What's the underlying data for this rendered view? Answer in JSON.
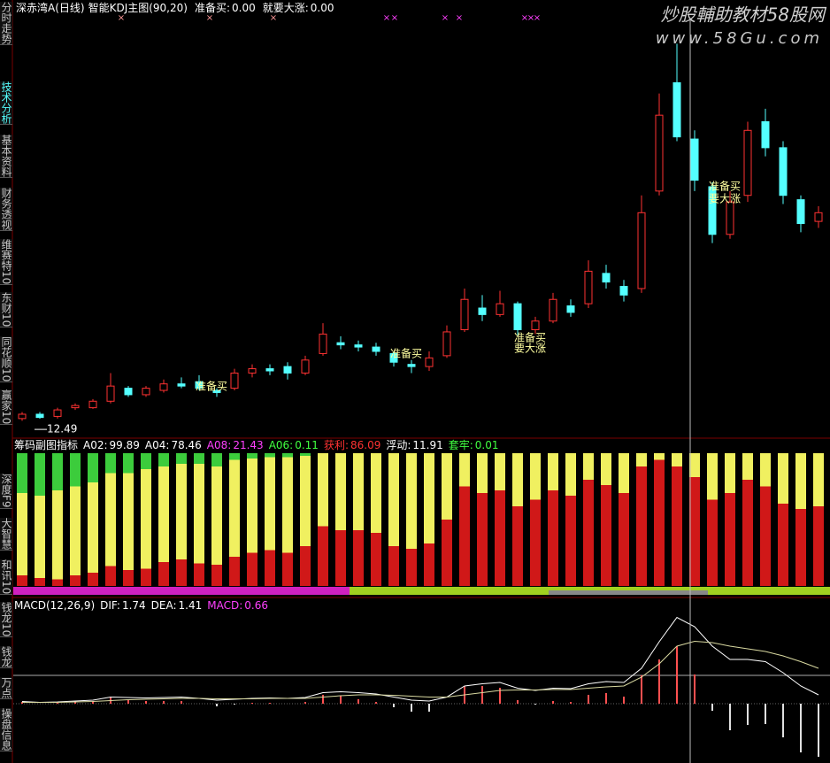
{
  "sidebar": [
    "分时走势",
    "技术分析",
    "基本资料",
    "财务透视",
    "维赛特10",
    "东财10",
    "同花顺10",
    "赢家10",
    "深度F9",
    "大智慧",
    "和讯10",
    "钱龙10",
    "钱龙",
    "万点",
    "操盘信息"
  ],
  "header": {
    "title": "深赤湾A(日线)",
    "indicator": "智能KDJ主图(90,20)",
    "items": [
      {
        "label": "准备买:",
        "value": "0.00"
      },
      {
        "label": "就要大涨:",
        "value": "0.00"
      }
    ]
  },
  "watermark": {
    "title": "炒股輔助教材58股网",
    "url": "www.58Gu.com"
  },
  "price_chart": {
    "type": "candlestick",
    "up_color": "#ff3232",
    "down_color": "#54ffff",
    "ylim": [
      11.8,
      31
    ],
    "signal_mark": "×",
    "low_label": "12.49",
    "annotations": [
      "准备买",
      "准备买",
      "准备买",
      "要大涨",
      "准备买",
      "要大涨"
    ],
    "candles": [
      [
        12.5,
        12.7,
        12.8,
        12.4
      ],
      [
        12.7,
        12.55,
        12.8,
        12.49
      ],
      [
        12.6,
        12.9,
        13.0,
        12.5
      ],
      [
        13.0,
        13.1,
        13.2,
        12.9
      ],
      [
        13.0,
        13.3,
        13.4,
        12.95
      ],
      [
        13.3,
        14.0,
        14.6,
        13.2
      ],
      [
        13.9,
        13.6,
        14.0,
        13.5
      ],
      [
        13.6,
        13.9,
        14.0,
        13.5
      ],
      [
        13.8,
        14.1,
        14.3,
        13.7
      ],
      [
        14.1,
        14.0,
        14.4,
        13.9
      ],
      [
        14.2,
        13.9,
        14.5,
        13.8
      ],
      [
        13.8,
        13.7,
        13.9,
        13.5
      ],
      [
        13.9,
        14.6,
        14.8,
        13.8
      ],
      [
        14.6,
        14.8,
        15.0,
        14.4
      ],
      [
        14.8,
        14.7,
        15.0,
        14.5
      ],
      [
        14.9,
        14.6,
        15.1,
        14.3
      ],
      [
        14.6,
        15.2,
        15.4,
        14.5
      ],
      [
        15.5,
        16.4,
        16.9,
        15.4
      ],
      [
        16.0,
        15.9,
        16.3,
        15.7
      ],
      [
        15.9,
        15.8,
        16.1,
        15.6
      ],
      [
        15.8,
        15.6,
        16.0,
        15.4
      ],
      [
        15.5,
        15.1,
        15.6,
        14.9
      ],
      [
        15.0,
        14.9,
        15.2,
        14.6
      ],
      [
        14.9,
        15.3,
        15.6,
        14.7
      ],
      [
        15.4,
        16.5,
        16.8,
        15.3
      ],
      [
        16.6,
        18.0,
        18.5,
        16.5
      ],
      [
        17.6,
        17.3,
        18.2,
        17.0
      ],
      [
        17.3,
        17.8,
        18.4,
        17.2
      ],
      [
        17.8,
        16.6,
        17.9,
        16.3
      ],
      [
        16.6,
        17.0,
        17.2,
        16.4
      ],
      [
        17.0,
        18.0,
        18.3,
        16.9
      ],
      [
        17.7,
        17.4,
        18.0,
        17.2
      ],
      [
        17.8,
        19.3,
        19.8,
        17.6
      ],
      [
        19.2,
        18.8,
        19.6,
        18.5
      ],
      [
        18.6,
        18.2,
        18.9,
        17.9
      ],
      [
        18.5,
        22.0,
        22.8,
        18.3
      ],
      [
        23.0,
        26.5,
        27.5,
        22.8
      ],
      [
        28.0,
        25.5,
        29.8,
        25.3
      ],
      [
        25.4,
        23.5,
        25.8,
        23.0
      ],
      [
        23.2,
        21.0,
        23.4,
        20.6
      ],
      [
        21.0,
        22.5,
        23.0,
        20.8
      ],
      [
        22.8,
        25.8,
        26.2,
        22.5
      ],
      [
        26.2,
        25.0,
        26.8,
        24.6
      ],
      [
        25.0,
        22.8,
        25.3,
        22.4
      ],
      [
        22.6,
        21.5,
        22.8,
        21.1
      ],
      [
        21.6,
        22.0,
        22.3,
        21.3
      ]
    ]
  },
  "chip_panel": {
    "title": "筹码副图指标",
    "items": [
      {
        "label": "A02:",
        "value": "99.89",
        "color": "#ffffff"
      },
      {
        "label": "A04:",
        "value": "78.46",
        "color": "#ffffff"
      },
      {
        "label": "A08:",
        "value": "21.43",
        "color": "#ff40ff"
      },
      {
        "label": "A06:",
        "value": "0.11",
        "color": "#40ff40"
      },
      {
        "label": "获利:",
        "value": "86.09",
        "color": "#ff3232"
      },
      {
        "label": "浮动:",
        "value": "11.91",
        "color": "#ffffff"
      },
      {
        "label": "套牢:",
        "value": "0.01",
        "color": "#40ff40"
      }
    ],
    "profit_color": "#d01818",
    "locked_color": "#3ccc3c",
    "float_color": "#f0f060",
    "profit": [
      8,
      6,
      5,
      8,
      10,
      15,
      12,
      13,
      18,
      20,
      17,
      16,
      22,
      25,
      27,
      25,
      30,
      45,
      42,
      42,
      40,
      30,
      28,
      32,
      50,
      75,
      70,
      72,
      60,
      65,
      72,
      68,
      80,
      76,
      70,
      90,
      95,
      90,
      82,
      65,
      70,
      80,
      75,
      62,
      58,
      60
    ],
    "locked": [
      30,
      32,
      28,
      25,
      22,
      15,
      15,
      12,
      10,
      8,
      8,
      10,
      5,
      4,
      3,
      3,
      2,
      0,
      0,
      0,
      0,
      0,
      0,
      0,
      0,
      0,
      0,
      0,
      0,
      0,
      0,
      0,
      0,
      0,
      0,
      0,
      0,
      0,
      0,
      0,
      0,
      0,
      0,
      0,
      0,
      0
    ]
  },
  "macd_panel": {
    "title": "MACD(12,26,9)",
    "items": [
      {
        "label": "DIF:",
        "value": "1.74",
        "color": "#ffffff"
      },
      {
        "label": "DEA:",
        "value": "1.41",
        "color": "#ffffff"
      },
      {
        "label": "MACD:",
        "value": "0.66",
        "color": "#ff40ff"
      }
    ],
    "ylim": [
      -1.3,
      2.1
    ],
    "dif": [
      0.05,
      0.03,
      0.04,
      0.06,
      0.08,
      0.15,
      0.14,
      0.13,
      0.14,
      0.15,
      0.12,
      0.08,
      0.1,
      0.12,
      0.13,
      0.12,
      0.14,
      0.25,
      0.27,
      0.25,
      0.22,
      0.15,
      0.08,
      0.06,
      0.15,
      0.4,
      0.45,
      0.48,
      0.35,
      0.3,
      0.35,
      0.34,
      0.45,
      0.5,
      0.48,
      0.8,
      1.4,
      1.95,
      1.74,
      1.3,
      1.0,
      1.0,
      0.95,
      0.7,
      0.4,
      0.2
    ],
    "dea": [
      0.03,
      0.03,
      0.03,
      0.04,
      0.05,
      0.07,
      0.09,
      0.1,
      0.11,
      0.12,
      0.12,
      0.11,
      0.11,
      0.11,
      0.12,
      0.12,
      0.12,
      0.15,
      0.18,
      0.2,
      0.2,
      0.19,
      0.17,
      0.15,
      0.15,
      0.2,
      0.25,
      0.3,
      0.31,
      0.31,
      0.32,
      0.32,
      0.35,
      0.38,
      0.4,
      0.6,
      0.9,
      1.3,
      1.41,
      1.38,
      1.3,
      1.24,
      1.18,
      1.08,
      0.95,
      0.8
    ],
    "macd": [
      0.04,
      0,
      0.02,
      0.04,
      0.06,
      0.16,
      0.1,
      0.06,
      0.06,
      0.06,
      0,
      -0.06,
      -0.02,
      0.02,
      0.02,
      0,
      0.04,
      0.2,
      0.18,
      0.1,
      0.04,
      -0.08,
      -0.18,
      -0.18,
      0,
      0.4,
      0.4,
      0.36,
      0.08,
      -0.02,
      0.06,
      0.04,
      0.2,
      0.24,
      0.16,
      0.64,
      1.0,
      1.3,
      0.66,
      -0.16,
      -0.6,
      -0.48,
      -0.46,
      -0.76,
      -1.1,
      -1.2
    ]
  }
}
